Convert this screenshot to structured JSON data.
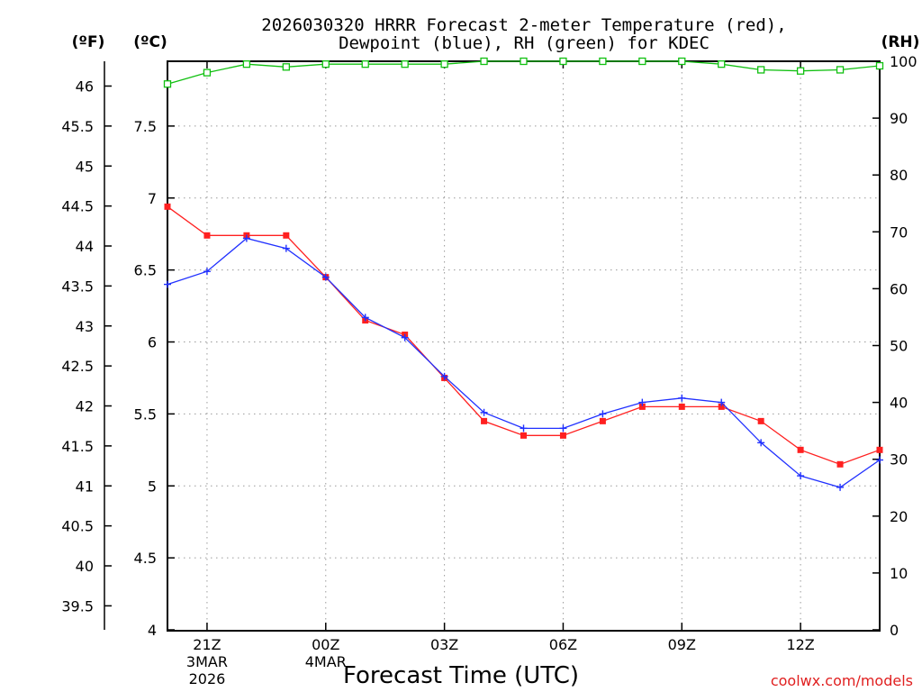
{
  "title_line1": "2026030320 HRRR Forecast 2-meter Temperature (red),",
  "title_line2": "Dewpoint (blue), RH (green) for KDEC",
  "credit": "coolwx.com/models",
  "chart_data": {
    "type": "line",
    "title": "2026030320 HRRR Forecast 2-meter Temperature (red), Dewpoint (blue), RH (green) for KDEC",
    "xlabel": "Forecast Time (UTC)",
    "units": {
      "f": "(ºF)",
      "c": "(ºC)",
      "rh": "(RH)"
    },
    "x_hours": [
      0,
      1,
      2,
      3,
      4,
      5,
      6,
      7,
      8,
      9,
      10,
      11,
      12,
      13,
      14,
      15,
      16,
      17,
      18
    ],
    "x_range": [
      0,
      18
    ],
    "x_ticks": [
      {
        "hour": 1,
        "label": "21Z",
        "date": "3MAR",
        "year": "2026"
      },
      {
        "hour": 4,
        "label": "00Z",
        "date": "4MAR",
        "year": ""
      },
      {
        "hour": 7,
        "label": "03Z",
        "date": "",
        "year": ""
      },
      {
        "hour": 10,
        "label": "06Z",
        "date": "",
        "year": ""
      },
      {
        "hour": 13,
        "label": "09Z",
        "date": "",
        "year": ""
      },
      {
        "hour": 16,
        "label": "12Z",
        "date": "",
        "year": ""
      }
    ],
    "yc_range": [
      4,
      7.95
    ],
    "yc_ticks": [
      "4",
      "4.5",
      "5",
      "5.5",
      "6",
      "6.5",
      "7",
      "7.5"
    ],
    "yf_ticks": [
      "39.5",
      "40",
      "40.5",
      "41",
      "41.5",
      "42",
      "42.5",
      "43",
      "43.5",
      "44",
      "44.5",
      "45",
      "45.5",
      "46"
    ],
    "rh_range": [
      0,
      100
    ],
    "rh_ticks": [
      "0",
      "10",
      "20",
      "30",
      "40",
      "50",
      "60",
      "70",
      "80",
      "90",
      "100"
    ],
    "grid": true,
    "series": [
      {
        "name": "Temperature",
        "unit": "C",
        "color": "#ff2020",
        "marker": "filled-square",
        "values": [
          6.94,
          6.74,
          6.74,
          6.74,
          6.45,
          6.15,
          6.05,
          5.75,
          5.45,
          5.35,
          5.35,
          5.45,
          5.55,
          5.55,
          5.55,
          5.45,
          5.25,
          5.15,
          5.25
        ]
      },
      {
        "name": "Dewpoint",
        "unit": "C",
        "color": "#2030ff",
        "marker": "plus",
        "values": [
          6.4,
          6.49,
          6.72,
          6.65,
          6.45,
          6.17,
          6.03,
          5.76,
          5.51,
          5.4,
          5.4,
          5.5,
          5.58,
          5.61,
          5.58,
          5.3,
          5.07,
          4.99,
          5.18
        ]
      },
      {
        "name": "RH",
        "unit": "%",
        "color": "#10c010",
        "marker": "open-square",
        "values": [
          96,
          98,
          99.5,
          99,
          99.5,
          99.5,
          99.5,
          99.5,
          100,
          100,
          100,
          100,
          100,
          100,
          99.5,
          98.5,
          98.3,
          98.5,
          99.2
        ]
      }
    ]
  }
}
